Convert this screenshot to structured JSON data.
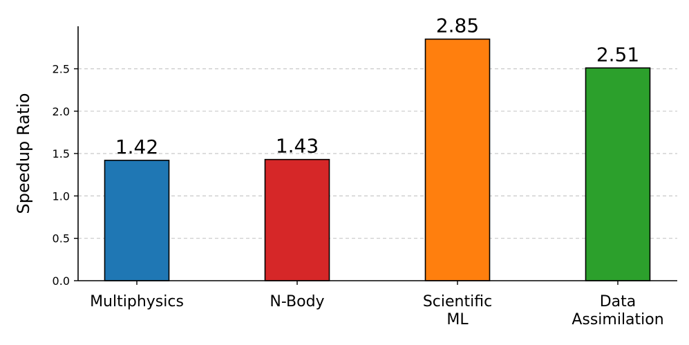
{
  "chart_data": {
    "type": "bar",
    "categories": [
      "Multiphysics",
      "N-Body",
      "Scientific\nML",
      "Data\nAssimilation"
    ],
    "values": [
      1.42,
      1.43,
      2.85,
      2.51
    ],
    "value_labels": [
      "1.42",
      "1.43",
      "2.85",
      "2.51"
    ],
    "colors": [
      "#1f77b4",
      "#d62728",
      "#ff7f0e",
      "#2ca02c"
    ],
    "title": "",
    "xlabel": "",
    "ylabel": "Speedup Ratio",
    "ylim": [
      0,
      3.0
    ],
    "yticks": [
      0.0,
      0.5,
      1.0,
      1.5,
      2.0,
      2.5
    ],
    "ytick_labels": [
      "0.0",
      "0.5",
      "1.0",
      "1.5",
      "2.0",
      "2.5"
    ],
    "grid": "horizontal-dashed",
    "legend": "none"
  }
}
